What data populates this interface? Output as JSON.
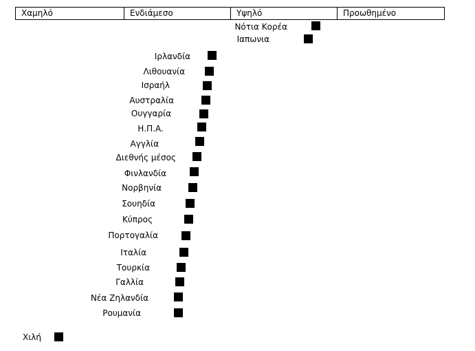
{
  "header": {
    "levels": [
      "Χαμηλό",
      "Ενδιάμεσο",
      "Υψηλό",
      "Προωθημένο"
    ]
  },
  "marker_color": "#000000",
  "countries": [
    {
      "name": "Νότια Κορέα",
      "rank": 1
    },
    {
      "name": "Ιαπωνια",
      "rank": 2
    },
    {
      "name": "Ιρλανδία",
      "rank": 3
    },
    {
      "name": "Λιθουανία",
      "rank": 4
    },
    {
      "name": "Ισραήλ",
      "rank": 5
    },
    {
      "name": "Αυστραλία",
      "rank": 6
    },
    {
      "name": "Ουγγαρία",
      "rank": 7
    },
    {
      "name": "Η.Π.Α.",
      "rank": 8
    },
    {
      "name": "Αγγλία",
      "rank": 9
    },
    {
      "name": "Διεθνής μέσος",
      "rank": 10
    },
    {
      "name": "Φινλανδία",
      "rank": 11
    },
    {
      "name": "Νορβηνία",
      "rank": 12
    },
    {
      "name": "Σουηδία",
      "rank": 13
    },
    {
      "name": "Κύπρος",
      "rank": 14
    },
    {
      "name": "Πορτογαλία",
      "rank": 15
    },
    {
      "name": "Ιταλία",
      "rank": 16
    },
    {
      "name": "Τουρκία",
      "rank": 17
    },
    {
      "name": "Γαλλία",
      "rank": 18
    },
    {
      "name": "Νέα Ζηλανδία",
      "rank": 19
    },
    {
      "name": "Ρουμανία",
      "rank": 20
    },
    {
      "name": "Χιλή",
      "rank": 21
    }
  ]
}
